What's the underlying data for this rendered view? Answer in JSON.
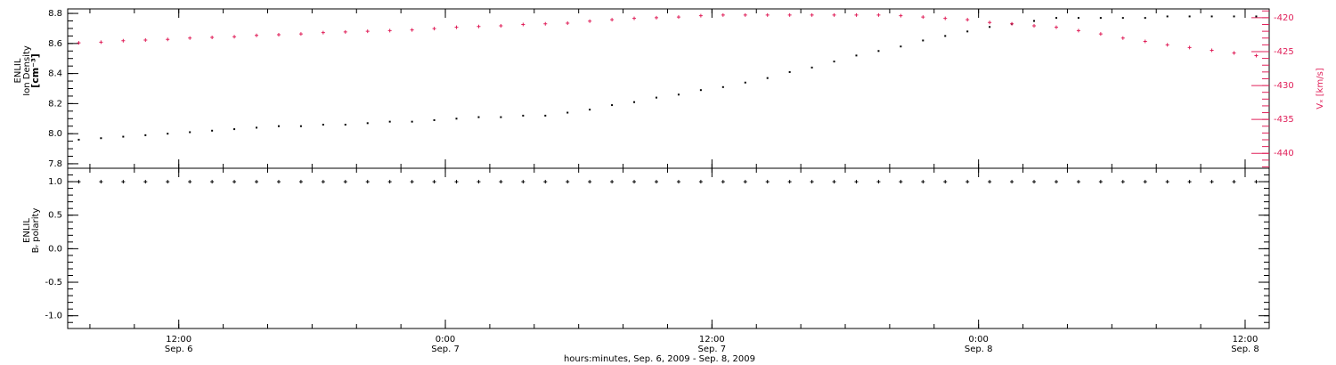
{
  "chart_data": [
    {
      "type": "scatter",
      "ylabel": [
        "ENLIL",
        "Ion Density",
        "[cm⁻³]"
      ],
      "y2label": "Vₓ [km/s]",
      "y2color": "#e0205a",
      "xlim": [
        "2009-09-06T07:00",
        "2009-09-08T13:05"
      ],
      "ylim": [
        7.77,
        8.83
      ],
      "yticks": [
        {
          "value": 7.8,
          "label": "7.8"
        },
        {
          "value": 8,
          "label": "8.0"
        },
        8.2,
        8.4,
        8.6,
        8.8
      ],
      "minor_yticks": [
        7.8,
        7.85,
        7.9,
        7.95,
        8,
        8.05,
        8.1,
        8.15,
        8.2,
        8.25,
        8.3,
        8.35,
        8.4,
        8.45,
        8.5,
        8.55,
        8.6,
        8.65,
        8.7,
        8.75,
        8.8
      ],
      "y2lim": [
        -442.2,
        -418.7
      ],
      "y2ticks": [
        -440,
        -435,
        -430,
        -425,
        -420
      ],
      "minor_y2ticks": [
        -442,
        -441,
        -440,
        -439,
        -438,
        -437,
        -436,
        -435,
        -434,
        -433,
        -432,
        -431,
        -430,
        -429,
        -428,
        -427,
        -426,
        -425,
        -424,
        -423,
        -422,
        -421,
        -420,
        -419
      ],
      "x": [
        "2009-09-06T07:30",
        "2009-09-06T08:30",
        "2009-09-06T09:30",
        "2009-09-06T10:30",
        "2009-09-06T11:30",
        "2009-09-06T12:30",
        "2009-09-06T13:30",
        "2009-09-06T14:30",
        "2009-09-06T15:30",
        "2009-09-06T16:30",
        "2009-09-06T17:30",
        "2009-09-06T18:30",
        "2009-09-06T19:30",
        "2009-09-06T20:30",
        "2009-09-06T21:30",
        "2009-09-06T22:30",
        "2009-09-06T23:30",
        "2009-09-07T00:30",
        "2009-09-07T01:30",
        "2009-09-07T02:30",
        "2009-09-07T03:30",
        "2009-09-07T04:30",
        "2009-09-07T05:30",
        "2009-09-07T06:30",
        "2009-09-07T07:30",
        "2009-09-07T08:30",
        "2009-09-07T09:30",
        "2009-09-07T10:30",
        "2009-09-07T11:30",
        "2009-09-07T12:30",
        "2009-09-07T13:30",
        "2009-09-07T14:30",
        "2009-09-07T15:30",
        "2009-09-07T16:30",
        "2009-09-07T17:30",
        "2009-09-07T18:30",
        "2009-09-07T19:30",
        "2009-09-07T20:30",
        "2009-09-07T21:30",
        "2009-09-07T22:30",
        "2009-09-07T23:30",
        "2009-09-08T00:30",
        "2009-09-08T01:30",
        "2009-09-08T02:30",
        "2009-09-08T03:30",
        "2009-09-08T04:30",
        "2009-09-08T05:30",
        "2009-09-08T06:30",
        "2009-09-08T07:30",
        "2009-09-08T08:30",
        "2009-09-08T09:30",
        "2009-09-08T10:30",
        "2009-09-08T11:30",
        "2009-09-08T12:30"
      ],
      "series": [
        {
          "color": "#000000",
          "marker": "dot",
          "values": [
            7.96,
            7.97,
            7.98,
            7.99,
            8.0,
            8.01,
            8.02,
            8.03,
            8.04,
            8.05,
            8.05,
            8.06,
            8.06,
            8.07,
            8.08,
            8.08,
            8.09,
            8.1,
            8.11,
            8.11,
            8.12,
            8.12,
            8.14,
            8.16,
            8.19,
            8.21,
            8.24,
            8.26,
            8.29,
            8.31,
            8.34,
            8.37,
            8.41,
            8.44,
            8.48,
            8.52,
            8.55,
            8.58,
            8.62,
            8.65,
            8.68,
            8.71,
            8.73,
            8.75,
            8.77,
            8.77,
            8.77,
            8.77,
            8.77,
            8.78,
            8.78,
            8.78,
            8.78,
            8.78
          ]
        },
        {
          "color": "#e0205a",
          "marker": "plus",
          "axis": "y2",
          "values": [
            -423.7,
            -423.6,
            -423.4,
            -423.3,
            -423.2,
            -423.0,
            -422.9,
            -422.8,
            -422.6,
            -422.5,
            -422.4,
            -422.2,
            -422.1,
            -422.0,
            -421.9,
            -421.8,
            -421.6,
            -421.4,
            -421.3,
            -421.2,
            -421.0,
            -420.9,
            -420.8,
            -420.5,
            -420.3,
            -420.1,
            -420.0,
            -419.9,
            -419.7,
            -419.6,
            -419.6,
            -419.6,
            -419.6,
            -419.6,
            -419.6,
            -419.6,
            -419.6,
            -419.7,
            -419.9,
            -420.1,
            -420.3,
            -420.7,
            -420.9,
            -421.2,
            -421.4,
            -421.9,
            -422.4,
            -423.0,
            -423.5,
            -424.0,
            -424.4,
            -424.8,
            -425.2,
            -425.6
          ]
        }
      ]
    },
    {
      "type": "scatter",
      "ylabel": [
        "ENLIL",
        "Bᵣ polarity"
      ],
      "xlabel": "hours:minutes, Sep.  6, 2009 - Sep.  8, 2009",
      "xlim": [
        "2009-09-06T07:00",
        "2009-09-08T13:05"
      ],
      "xticks": [
        {
          "value": "2009-09-06T12:00",
          "label": "12:00",
          "date_label": "Sep. 6"
        },
        {
          "value": "2009-09-07T00:00",
          "label": "0:00",
          "date_label": "Sep. 7"
        },
        {
          "value": "2009-09-07T12:00",
          "label": "12:00",
          "date_label": "Sep. 7"
        },
        {
          "value": "2009-09-08T00:00",
          "label": "0:00",
          "date_label": "Sep. 8"
        },
        {
          "value": "2009-09-08T12:00",
          "label": "12:00",
          "date_label": "Sep. 8"
        }
      ],
      "minor_xticks": [
        "2009-09-06T08:00",
        "2009-09-06T10:00",
        "2009-09-06T12:00",
        "2009-09-06T14:00",
        "2009-09-06T16:00",
        "2009-09-06T18:00",
        "2009-09-06T20:00",
        "2009-09-06T22:00",
        "2009-09-07T00:00",
        "2009-09-07T02:00",
        "2009-09-07T04:00",
        "2009-09-07T06:00",
        "2009-09-07T08:00",
        "2009-09-07T10:00",
        "2009-09-07T12:00",
        "2009-09-07T14:00",
        "2009-09-07T16:00",
        "2009-09-07T18:00",
        "2009-09-07T20:00",
        "2009-09-07T22:00",
        "2009-09-08T00:00",
        "2009-09-08T02:00",
        "2009-09-08T04:00",
        "2009-09-08T06:00",
        "2009-09-08T08:00",
        "2009-09-08T10:00",
        "2009-09-08T12:00"
      ],
      "ylim": [
        -1.19,
        1.2
      ],
      "yticks": [
        {
          "value": -1,
          "label": "-1.0"
        },
        -0.5,
        {
          "value": 0,
          "label": "0.0"
        },
        0.5,
        {
          "value": 1,
          "label": "1.0"
        }
      ],
      "minor_yticks": [
        -1.1,
        -1,
        -0.9,
        -0.8,
        -0.7,
        -0.6,
        -0.5,
        -0.4,
        -0.3,
        -0.2,
        -0.1,
        0,
        0.1,
        0.2,
        0.3,
        0.4,
        0.5,
        0.6,
        0.7,
        0.8,
        0.9,
        1,
        1.1
      ],
      "x": [
        "2009-09-06T07:30",
        "2009-09-06T08:30",
        "2009-09-06T09:30",
        "2009-09-06T10:30",
        "2009-09-06T11:30",
        "2009-09-06T12:30",
        "2009-09-06T13:30",
        "2009-09-06T14:30",
        "2009-09-06T15:30",
        "2009-09-06T16:30",
        "2009-09-06T17:30",
        "2009-09-06T18:30",
        "2009-09-06T19:30",
        "2009-09-06T20:30",
        "2009-09-06T21:30",
        "2009-09-06T22:30",
        "2009-09-06T23:30",
        "2009-09-07T00:30",
        "2009-09-07T01:30",
        "2009-09-07T02:30",
        "2009-09-07T03:30",
        "2009-09-07T04:30",
        "2009-09-07T05:30",
        "2009-09-07T06:30",
        "2009-09-07T07:30",
        "2009-09-07T08:30",
        "2009-09-07T09:30",
        "2009-09-07T10:30",
        "2009-09-07T11:30",
        "2009-09-07T12:30",
        "2009-09-07T13:30",
        "2009-09-07T14:30",
        "2009-09-07T15:30",
        "2009-09-07T16:30",
        "2009-09-07T17:30",
        "2009-09-07T18:30",
        "2009-09-07T19:30",
        "2009-09-07T20:30",
        "2009-09-07T21:30",
        "2009-09-07T22:30",
        "2009-09-07T23:30",
        "2009-09-08T00:30",
        "2009-09-08T01:30",
        "2009-09-08T02:30",
        "2009-09-08T03:30",
        "2009-09-08T04:30",
        "2009-09-08T05:30",
        "2009-09-08T06:30",
        "2009-09-08T07:30",
        "2009-09-08T08:30",
        "2009-09-08T09:30",
        "2009-09-08T10:30",
        "2009-09-08T11:30",
        "2009-09-08T12:30"
      ],
      "series": [
        {
          "color": "#000000",
          "marker": "plus",
          "values": [
            1,
            1,
            1,
            1,
            1,
            1,
            1,
            1,
            1,
            1,
            1,
            1,
            1,
            1,
            1,
            1,
            1,
            1,
            1,
            1,
            1,
            1,
            1,
            1,
            1,
            1,
            1,
            1,
            1,
            1,
            1,
            1,
            1,
            1,
            1,
            1,
            1,
            1,
            1,
            1,
            1,
            1,
            1,
            1,
            1,
            1,
            1,
            1,
            1,
            1,
            1,
            1,
            1,
            1
          ]
        }
      ]
    }
  ]
}
